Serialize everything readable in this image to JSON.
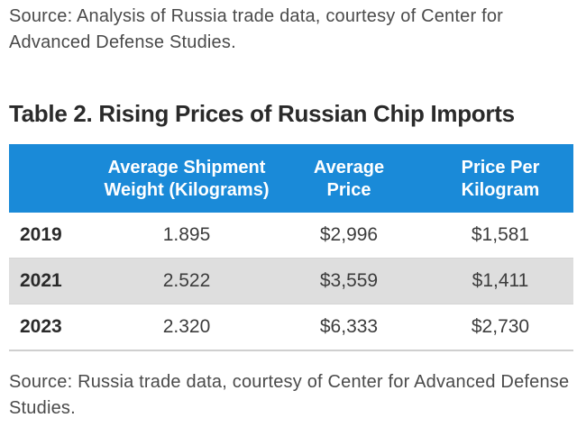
{
  "top_source": "Source: Analysis of Russia trade data, courtesy of Center for Advanced Defense Studies.",
  "table": {
    "title": "Table 2. Rising Prices of Russian Chip Imports",
    "headers": {
      "weight": "Average Shipment Weight (Kilograms)",
      "price": "Average Price",
      "price_per_kg": "Price Per Kilogram"
    },
    "rows": [
      {
        "year": "2019",
        "weight": "1.895",
        "price": "$2,996",
        "price_per_kg": "$1,581"
      },
      {
        "year": "2021",
        "weight": "2.522",
        "price": "$3,559",
        "price_per_kg": "$1,411"
      },
      {
        "year": "2023",
        "weight": "2.320",
        "price": "$6,333",
        "price_per_kg": "$2,730"
      }
    ],
    "header_color": "#1a8ad8",
    "shaded_row_color": "#dedede"
  },
  "bottom_source": "Source: Russia trade data, courtesy of Center for Advanced Defense Studies."
}
